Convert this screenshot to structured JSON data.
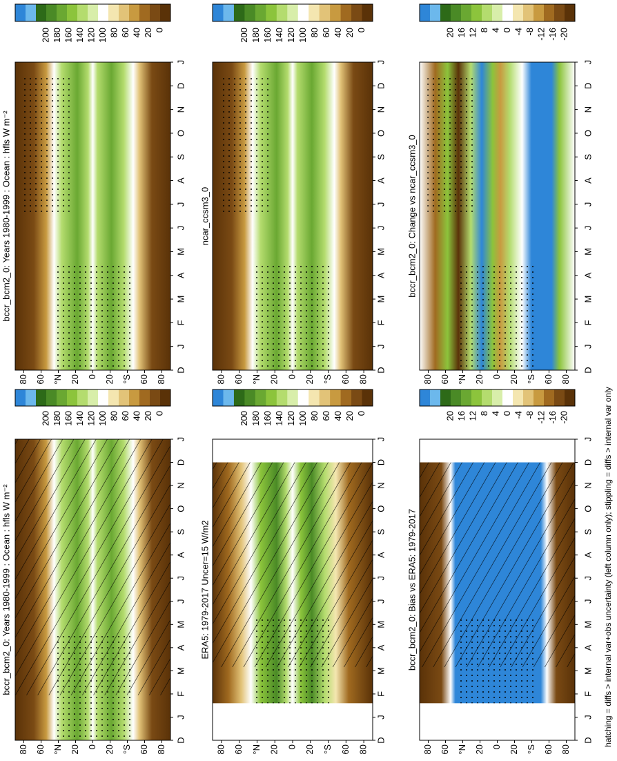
{
  "panels": [
    {
      "title": "bccr_bcm2_0: Years 1980-1999 : Ocean : hfls W m⁻²"
    },
    {
      "title": "bccr_bcm2_0: Years 1980-1999 : Ocean : hfls W m⁻²"
    },
    {
      "title": "ERA5: 1979-2017 Uncer=15 W/m2"
    },
    {
      "title": "ncar_ccsm3_0"
    },
    {
      "title": "bccr_bcm2_0: Bias vs ERA5: 1979-2017"
    },
    {
      "title": "bccr_bcm2_0: Change vs ncar_ccsm3_0"
    }
  ],
  "months": [
    "D",
    "J",
    "F",
    "M",
    "A",
    "M",
    "J",
    "J",
    "A",
    "S",
    "O",
    "N",
    "D",
    "J"
  ],
  "latitudes": [
    "80",
    "60",
    "°N",
    "20",
    "0",
    "20",
    "°S",
    "60",
    "80"
  ],
  "colorbars": {
    "absolute": [
      "200",
      "180",
      "160",
      "140",
      "120",
      "100",
      "80",
      "60",
      "40",
      "20",
      "0"
    ],
    "difference": [
      "20",
      "16",
      "12",
      "8",
      "4",
      "0",
      "-4",
      "-8",
      "-12",
      "-16",
      "-20"
    ]
  },
  "footnote": "hatching = diffs > internal var+obs uncertainty (left column only); stippling = diffs > internal var only"
}
